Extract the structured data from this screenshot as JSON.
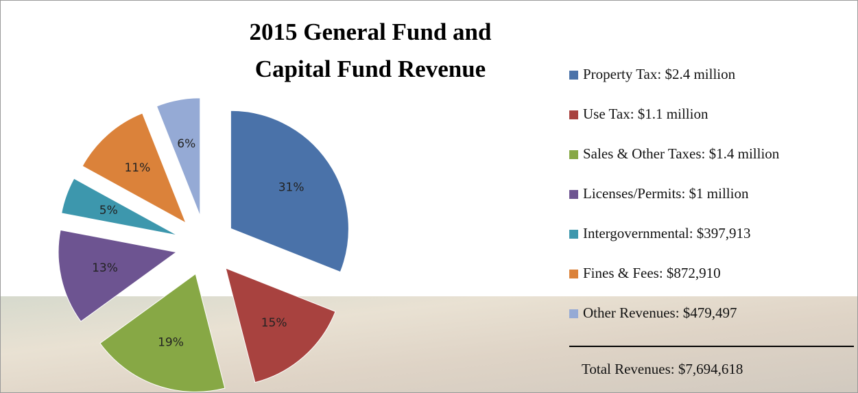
{
  "chart_data": {
    "type": "pie",
    "title": [
      "2015 General Fund and",
      "Capital Fund Revenue"
    ],
    "categories": [
      "Property Tax: $2.4 million",
      "Use Tax: $1.1 million",
      "Sales & Other Taxes: $1.4 million",
      "Licenses/Permits: $1 million",
      "Intergovernmental: $397,913",
      "Fines & Fees: $872,910",
      "Other Revenues: $479,497"
    ],
    "values": [
      31,
      15,
      19,
      13,
      5,
      11,
      6
    ],
    "value_labels": [
      "31%",
      "15%",
      "19%",
      "13%",
      "5%",
      "11%",
      "6%"
    ],
    "colors": [
      "#4a72a9",
      "#a8423f",
      "#87a845",
      "#6d5491",
      "#3d97ad",
      "#db823a",
      "#95aad5"
    ],
    "annotation": "Total Revenues: $7,694,618",
    "legend": "right"
  }
}
